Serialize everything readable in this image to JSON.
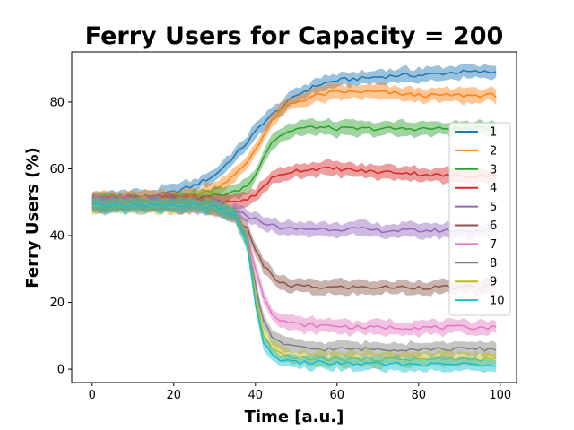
{
  "chart_data": {
    "type": "line",
    "title": "Ferry Users for Capacity = 200",
    "xlabel": "Time [a.u.]",
    "ylabel": "Ferry Users (%)",
    "xlim": [
      -5,
      104
    ],
    "ylim": [
      -4,
      95
    ],
    "xticks": [
      0,
      20,
      40,
      60,
      80,
      100
    ],
    "yticks": [
      0,
      20,
      40,
      60,
      80
    ],
    "grid": false,
    "legend_position": "right",
    "shaded_band": true,
    "x": [
      0,
      5,
      10,
      15,
      20,
      25,
      30,
      35,
      38,
      40,
      42,
      44,
      46,
      48,
      50,
      55,
      60,
      65,
      70,
      75,
      80,
      85,
      90,
      95,
      99
    ],
    "series": [
      {
        "name": "1",
        "color": "#1f77b4",
        "values": [
          51,
          51,
          51.5,
          52,
          53,
          55,
          58,
          64,
          68,
          71,
          74,
          76,
          78,
          80,
          82,
          85,
          86.5,
          87,
          87.5,
          88,
          88,
          88.5,
          89,
          89,
          89
        ]
      },
      {
        "name": "2",
        "color": "#ff7f0e",
        "values": [
          51,
          51,
          51,
          51,
          51.5,
          52,
          54,
          58,
          62,
          66,
          70,
          74,
          77,
          79,
          80,
          82,
          83,
          83,
          83,
          82.5,
          82,
          82,
          82,
          82,
          82
        ]
      },
      {
        "name": "3",
        "color": "#2ca02c",
        "values": [
          50,
          50,
          50,
          50,
          50.5,
          51,
          52,
          53,
          55,
          58,
          64,
          68,
          70,
          71,
          72,
          72.5,
          72,
          72,
          72,
          72,
          72,
          72,
          72,
          72,
          72
        ]
      },
      {
        "name": "4",
        "color": "#d62728",
        "values": [
          50,
          50,
          50,
          50,
          50,
          50,
          50,
          50,
          51,
          52,
          55,
          57,
          58,
          59,
          59.5,
          60,
          60,
          59.5,
          59,
          59,
          58.5,
          58,
          58,
          58,
          58
        ]
      },
      {
        "name": "5",
        "color": "#9467bd",
        "values": [
          49.5,
          49.5,
          49.5,
          49.5,
          49.5,
          49,
          48.5,
          47,
          46,
          45,
          44,
          43,
          42.5,
          42,
          42,
          42,
          42,
          42,
          41.5,
          41.5,
          41.5,
          41.5,
          41.5,
          41.5,
          42
        ]
      },
      {
        "name": "6",
        "color": "#8c564b",
        "values": [
          49.5,
          49.5,
          49.5,
          49.5,
          49,
          49,
          48.5,
          46,
          42,
          36,
          31,
          28,
          26,
          25,
          25,
          24.5,
          24.5,
          24.5,
          24.5,
          24.5,
          24.5,
          24.5,
          24.5,
          24.5,
          25
        ]
      },
      {
        "name": "7",
        "color": "#e377c2",
        "values": [
          49.5,
          49.5,
          49.5,
          49.5,
          49,
          49,
          48.5,
          46,
          40,
          30,
          22,
          17,
          15,
          14,
          13.5,
          13,
          13,
          12.5,
          12.5,
          12.5,
          12.5,
          12.5,
          12.5,
          12.5,
          12.5
        ]
      },
      {
        "name": "8",
        "color": "#7f7f7f",
        "values": [
          49,
          49,
          49,
          49,
          49,
          49,
          48.5,
          46,
          39,
          25,
          14,
          10,
          8,
          7,
          6.5,
          6,
          6,
          6,
          6,
          6,
          6,
          6,
          6,
          6,
          6
        ]
      },
      {
        "name": "9",
        "color": "#bcbd22",
        "values": [
          49,
          49,
          49,
          49,
          49,
          49,
          48.5,
          46,
          38,
          22,
          10,
          6,
          4.5,
          4,
          3.5,
          3,
          3,
          3,
          3,
          3,
          3,
          3,
          3,
          3,
          3
        ]
      },
      {
        "name": "10",
        "color": "#17becf",
        "values": [
          49,
          49,
          49,
          49,
          49,
          49,
          48.5,
          46,
          37,
          20,
          8,
          4,
          3,
          2.5,
          2,
          2,
          1.8,
          1.6,
          1.5,
          1.5,
          1.5,
          1.5,
          1.5,
          1.5,
          1.5
        ]
      }
    ]
  }
}
